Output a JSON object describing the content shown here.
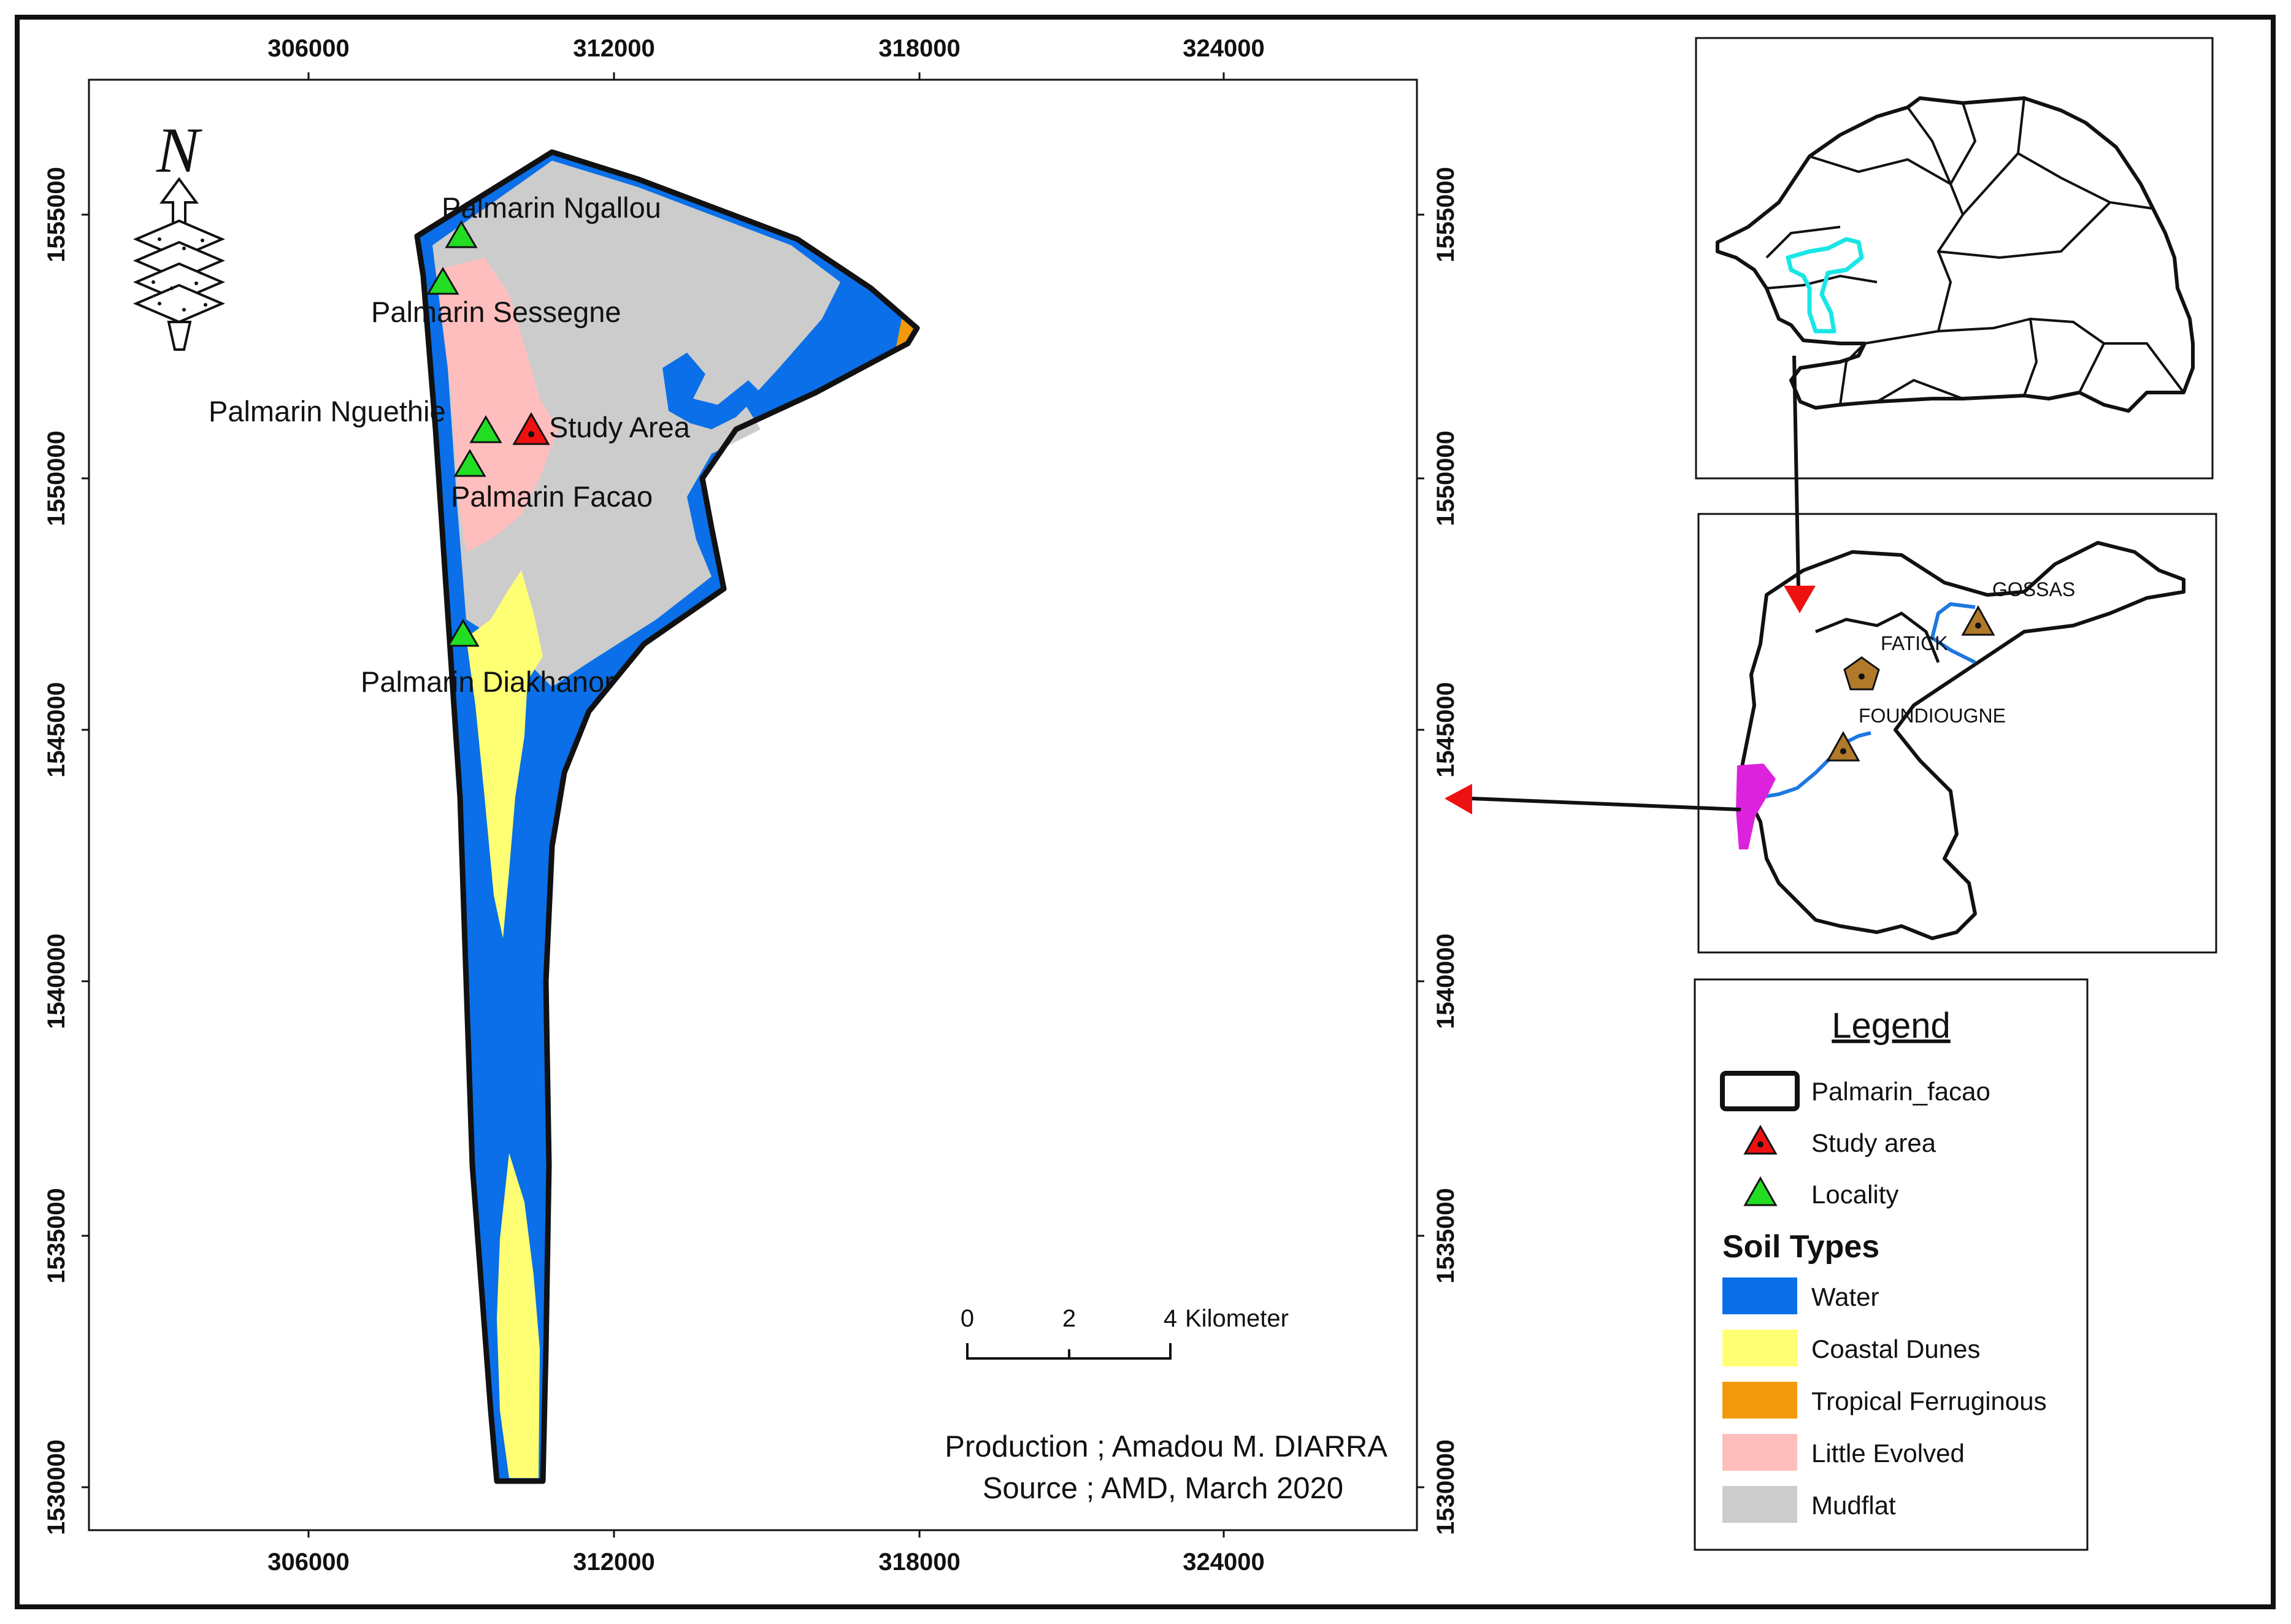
{
  "main_map": {
    "x_ticks": [
      "306000",
      "312000",
      "318000",
      "324000"
    ],
    "y_ticks": [
      "1555000",
      "1550000",
      "1545000",
      "1540000",
      "1535000",
      "1530000"
    ],
    "north_letter": "N",
    "localities": [
      {
        "name": "Palmarin Ngallou"
      },
      {
        "name": "Palmarin Sessegne"
      },
      {
        "name": "Palmarin Nguethie"
      },
      {
        "name": "Palmarin Facao"
      },
      {
        "name": "Palmarin Diakhanor"
      }
    ],
    "study_area_label": "Study Area",
    "scale_bar": {
      "labels": [
        "0",
        "2",
        "4"
      ],
      "unit": "Kilometer"
    },
    "credits": {
      "production": "Production ; Amadou M. DIARRA",
      "source": "Source ; AMD, March 2020"
    }
  },
  "inset_region": {
    "places": [
      "GOSSAS",
      "FATICK",
      "FOUNDIOUGNE"
    ]
  },
  "legend": {
    "title": "Legend",
    "boundary_label": "Palmarin_facao",
    "study_area_label": "Study area",
    "locality_label": "Locality",
    "soil_types_title": "Soil Types",
    "soil_types": [
      {
        "label": "Water",
        "color": "#0a6fe8"
      },
      {
        "label": "Coastal Dunes",
        "color": "#ffff73"
      },
      {
        "label": "Tropical Ferruginous",
        "color": "#f29a0c"
      },
      {
        "label": "Little Evolved",
        "color": "#ffbebe"
      },
      {
        "label": "Mudflat",
        "color": "#cccccc"
      }
    ]
  },
  "colors": {
    "water": "#0a6fe8",
    "dunes": "#ffff73",
    "ferruginous": "#f29a0c",
    "little_evolved": "#ffbebe",
    "mudflat": "#cccccc",
    "locality_marker": "#22dd22",
    "study_marker": "#ee1111",
    "arrow_red": "#ee1111",
    "highlight_cyan": "#19e6e6",
    "highlight_magenta": "#dd22dd",
    "town_marker": "#b07a2a",
    "river_blue": "#1e78e0"
  }
}
